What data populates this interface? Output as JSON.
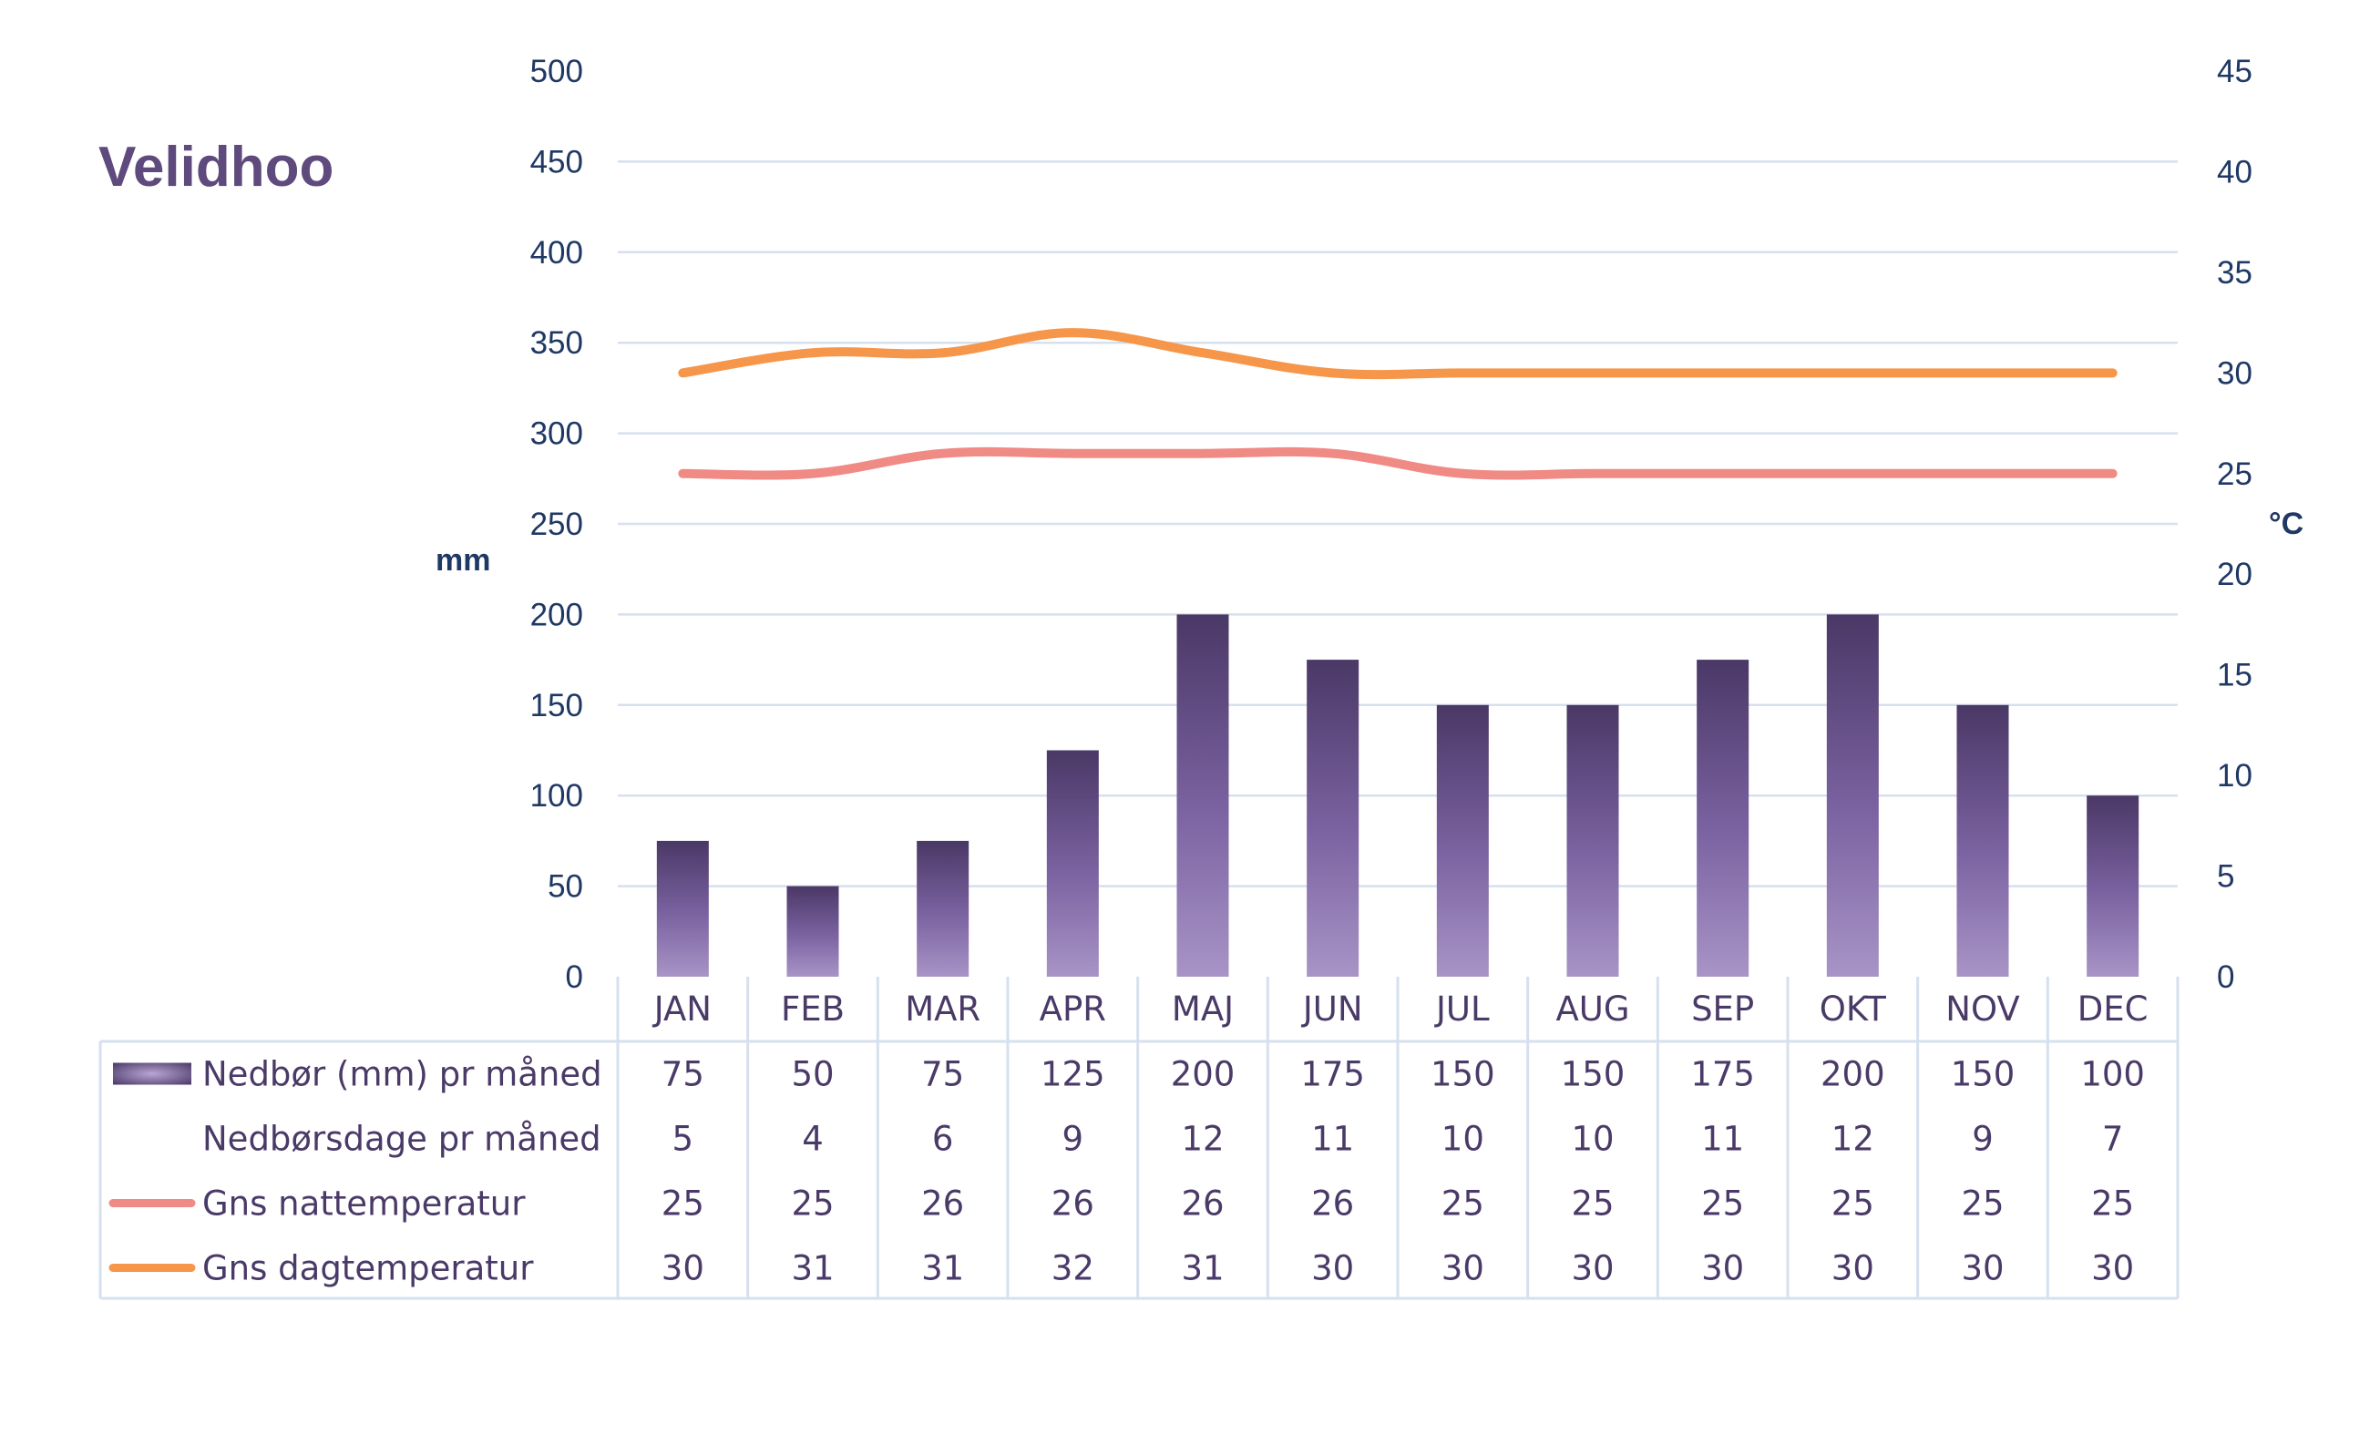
{
  "chart_data": {
    "type": "bar",
    "title": "Velidhoo",
    "categories": [
      "JAN",
      "FEB",
      "MAR",
      "APR",
      "MAJ",
      "JUN",
      "JUL",
      "AUG",
      "SEP",
      "OKT",
      "NOV",
      "DEC"
    ],
    "left_axis": {
      "label": "mm",
      "min": 0,
      "max": 500,
      "step": 50,
      "ticks": [
        "0",
        "50",
        "100",
        "150",
        "200",
        "250",
        "300",
        "350",
        "400",
        "450",
        "500"
      ]
    },
    "right_axis": {
      "label": "°C",
      "min": 0,
      "max": 45,
      "step": 5,
      "ticks": [
        "0",
        "5",
        "10",
        "15",
        "20",
        "25",
        "30",
        "35",
        "40",
        "45"
      ]
    },
    "grid": true,
    "legend": "data-table-below",
    "series": [
      {
        "name": "Nedbør (mm) pr måned",
        "kind": "bar",
        "axis": "left",
        "color": "#5b4578",
        "values": [
          75,
          50,
          75,
          125,
          200,
          175,
          150,
          150,
          175,
          200,
          150,
          100
        ]
      },
      {
        "name": "Nedbørsdage pr måned",
        "kind": "table-only",
        "values": [
          5,
          4,
          6,
          9,
          12,
          11,
          10,
          10,
          11,
          12,
          9,
          7
        ]
      },
      {
        "name": "Gns nattemperatur",
        "kind": "line",
        "axis": "right",
        "color": "#f08a84",
        "values": [
          25,
          25,
          26,
          26,
          26,
          26,
          25,
          25,
          25,
          25,
          25,
          25
        ]
      },
      {
        "name": "Gns dagtemperatur",
        "kind": "line",
        "axis": "right",
        "color": "#f5964a",
        "values": [
          30,
          31,
          31,
          32,
          31,
          30,
          30,
          30,
          30,
          30,
          30,
          30
        ]
      }
    ]
  },
  "colors": {
    "title": "#5e4a7c",
    "axis_text": "#1f3864",
    "grid": "#d6e0ee",
    "table_text": "#4a3a68"
  }
}
